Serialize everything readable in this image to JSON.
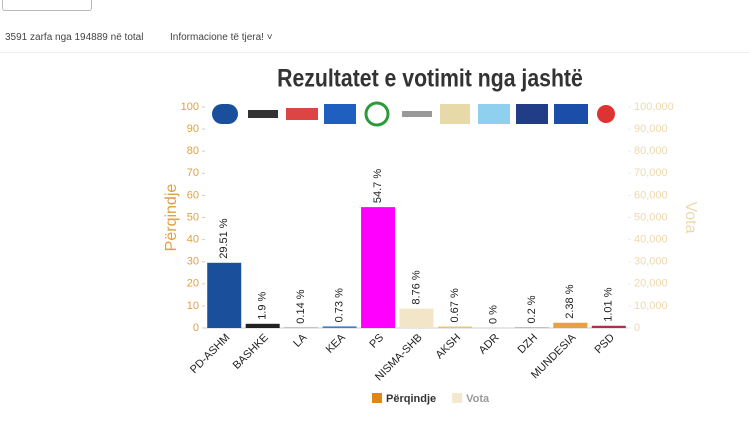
{
  "summary": "3591 zarfa nga 194889 në total",
  "info_link": "Informacione të tjera!",
  "chart_data": {
    "type": "bar",
    "title": "Rezultatet e votimit nga jashtë",
    "ylabel": "Përqindje",
    "y2label": "Vota",
    "categories": [
      "PD-ASHM",
      "BASHKE",
      "LA",
      "KEA",
      "PS",
      "NISMA-SHB",
      "AKSH",
      "ADR",
      "DZH",
      "MUNDESIA",
      "PSD"
    ],
    "series": [
      {
        "name": "Përqindje",
        "color": "#e0851c",
        "values": [
          29.51,
          1.9,
          0.14,
          0.73,
          54.7,
          8.76,
          0.67,
          0,
          0.2,
          2.38,
          1.01
        ],
        "value_labels": [
          "29.51 %",
          "1.9 %",
          "0.14 %",
          "0.73 %",
          "54.7 %",
          "8.76 %",
          "0.67 %",
          "0 %",
          "0.2 %",
          "2.38 %",
          "1.01 %"
        ],
        "colors": [
          "#1a4f9c",
          "#222222",
          "#cc3333",
          "#3a7fd0",
          "#ff00ff",
          "#f3e6c8",
          "#e8c86a",
          "#999999",
          "#777777",
          "#e8a040",
          "#b0304a"
        ]
      },
      {
        "name": "Vota",
        "color": "#f5e8d0",
        "axis": "y2"
      }
    ],
    "ylim": [
      0,
      100
    ],
    "yticks": [
      0,
      10,
      20,
      30,
      40,
      50,
      60,
      70,
      80,
      90,
      100
    ],
    "y2lim": [
      0,
      100000
    ],
    "y2ticks": [
      0,
      {
        "value": 10000,
        "label": "10,000"
      },
      {
        "value": 20000,
        "label": "20,000"
      },
      {
        "value": 30000,
        "label": "30,000"
      },
      {
        "value": 40000,
        "label": "40,000"
      },
      {
        "value": 50000,
        "label": "50,000"
      },
      {
        "value": 60000,
        "label": "60,000"
      },
      {
        "value": 70000,
        "label": "70,000"
      },
      {
        "value": 80000,
        "label": "80,000"
      },
      {
        "value": 90000,
        "label": "90,000"
      },
      {
        "value": 100000,
        "label": "100,000"
      }
    ],
    "legend": "bottom"
  }
}
